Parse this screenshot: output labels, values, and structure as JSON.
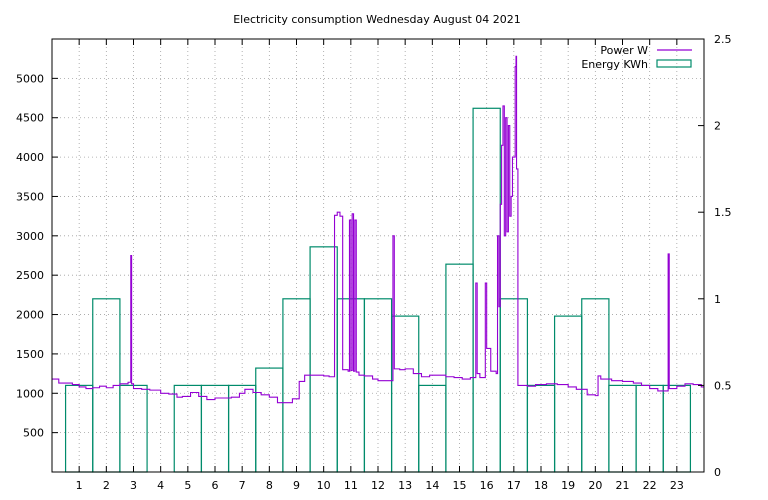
{
  "chart_data": {
    "type": "line",
    "title": "Electricity consumption Wednesday August 04 2021",
    "xlim": [
      0,
      24
    ],
    "x_ticks": [
      1,
      2,
      3,
      4,
      5,
      6,
      7,
      8,
      9,
      10,
      11,
      12,
      13,
      14,
      15,
      16,
      17,
      18,
      19,
      20,
      21,
      22,
      23
    ],
    "ylim_left": [
      0,
      5500
    ],
    "y_ticks_left": [
      500,
      1000,
      1500,
      2000,
      2500,
      3000,
      3500,
      4000,
      4500,
      5000
    ],
    "ylim_right": [
      0,
      2.5
    ],
    "y_ticks_right": [
      0,
      0.5,
      1,
      1.5,
      2,
      2.5
    ],
    "grid": true,
    "legend_position": "top-right",
    "series": [
      {
        "name": "Power W",
        "axis": "left",
        "style": "step",
        "color": "#9400d3",
        "points": [
          [
            0,
            1180
          ],
          [
            0.25,
            1130
          ],
          [
            0.5,
            1130
          ],
          [
            0.75,
            1110
          ],
          [
            1,
            1080
          ],
          [
            1.25,
            1060
          ],
          [
            1.5,
            1070
          ],
          [
            1.75,
            1090
          ],
          [
            2,
            1070
          ],
          [
            2.25,
            1100
          ],
          [
            2.5,
            1120
          ],
          [
            2.8,
            1140
          ],
          [
            2.9,
            2750
          ],
          [
            2.93,
            1120
          ],
          [
            3,
            1060
          ],
          [
            3.3,
            1050
          ],
          [
            3.6,
            1040
          ],
          [
            4,
            1000
          ],
          [
            4.3,
            990
          ],
          [
            4.6,
            950
          ],
          [
            4.8,
            960
          ],
          [
            5.1,
            1010
          ],
          [
            5.4,
            960
          ],
          [
            5.7,
            920
          ],
          [
            6,
            940
          ],
          [
            6.3,
            940
          ],
          [
            6.6,
            950
          ],
          [
            6.9,
            1000
          ],
          [
            7.1,
            1050
          ],
          [
            7.4,
            1010
          ],
          [
            7.7,
            980
          ],
          [
            8,
            950
          ],
          [
            8.3,
            880
          ],
          [
            8.6,
            880
          ],
          [
            8.85,
            930
          ],
          [
            9.1,
            1150
          ],
          [
            9.3,
            1230
          ],
          [
            9.6,
            1230
          ],
          [
            10,
            1220
          ],
          [
            10.2,
            1210
          ],
          [
            10.4,
            3260
          ],
          [
            10.5,
            3300
          ],
          [
            10.6,
            3250
          ],
          [
            10.7,
            1300
          ],
          [
            10.9,
            1280
          ],
          [
            10.95,
            3200
          ],
          [
            11,
            1290
          ],
          [
            11.05,
            3280
          ],
          [
            11.1,
            1280
          ],
          [
            11.15,
            3200
          ],
          [
            11.2,
            1270
          ],
          [
            11.3,
            1230
          ],
          [
            11.5,
            1220
          ],
          [
            11.8,
            1180
          ],
          [
            12,
            1160
          ],
          [
            12.3,
            1160
          ],
          [
            12.55,
            3000
          ],
          [
            12.6,
            1310
          ],
          [
            12.8,
            1300
          ],
          [
            13,
            1310
          ],
          [
            13.3,
            1250
          ],
          [
            13.6,
            1210
          ],
          [
            13.9,
            1230
          ],
          [
            14.2,
            1230
          ],
          [
            14.5,
            1210
          ],
          [
            14.8,
            1200
          ],
          [
            15.1,
            1180
          ],
          [
            15.4,
            1200
          ],
          [
            15.6,
            2400
          ],
          [
            15.65,
            1250
          ],
          [
            15.75,
            1200
          ],
          [
            15.95,
            2400
          ],
          [
            16,
            1570
          ],
          [
            16.15,
            1280
          ],
          [
            16.35,
            1250
          ],
          [
            16.4,
            3000
          ],
          [
            16.45,
            2100
          ],
          [
            16.5,
            3400
          ],
          [
            16.55,
            4150
          ],
          [
            16.6,
            4650
          ],
          [
            16.65,
            3000
          ],
          [
            16.7,
            4500
          ],
          [
            16.75,
            3050
          ],
          [
            16.8,
            4400
          ],
          [
            16.85,
            3250
          ],
          [
            16.9,
            3500
          ],
          [
            16.95,
            4000
          ],
          [
            17.05,
            5150
          ],
          [
            17.08,
            5280
          ],
          [
            17.1,
            3850
          ],
          [
            17.15,
            1100
          ],
          [
            17.5,
            1090
          ],
          [
            17.8,
            1110
          ],
          [
            18.2,
            1120
          ],
          [
            18.6,
            1110
          ],
          [
            19,
            1080
          ],
          [
            19.3,
            1050
          ],
          [
            19.7,
            980
          ],
          [
            20,
            970
          ],
          [
            20.1,
            1220
          ],
          [
            20.2,
            1180
          ],
          [
            20.6,
            1160
          ],
          [
            21,
            1150
          ],
          [
            21.4,
            1130
          ],
          [
            21.7,
            1100
          ],
          [
            22,
            1060
          ],
          [
            22.3,
            1030
          ],
          [
            22.5,
            1030
          ],
          [
            22.68,
            2770
          ],
          [
            22.72,
            1060
          ],
          [
            23,
            1090
          ],
          [
            23.3,
            1120
          ],
          [
            23.6,
            1110
          ],
          [
            23.9,
            1080
          ],
          [
            24,
            1080
          ]
        ]
      },
      {
        "name": "Energy KWh",
        "axis": "right",
        "style": "boxes",
        "color": "#008b6b",
        "categories": [
          1,
          2,
          3,
          4,
          5,
          6,
          7,
          8,
          9,
          10,
          11,
          12,
          13,
          14,
          15,
          16,
          17,
          18,
          19,
          20,
          21,
          22,
          23
        ],
        "values": [
          0.5,
          1.0,
          0.5,
          0,
          0.5,
          0.5,
          0.5,
          0.6,
          1.0,
          1.3,
          1.0,
          1.0,
          0.9,
          0.5,
          1.2,
          2.1,
          1.0,
          0.5,
          0.9,
          1.0,
          0.5,
          0.5,
          0.5
        ]
      }
    ]
  }
}
